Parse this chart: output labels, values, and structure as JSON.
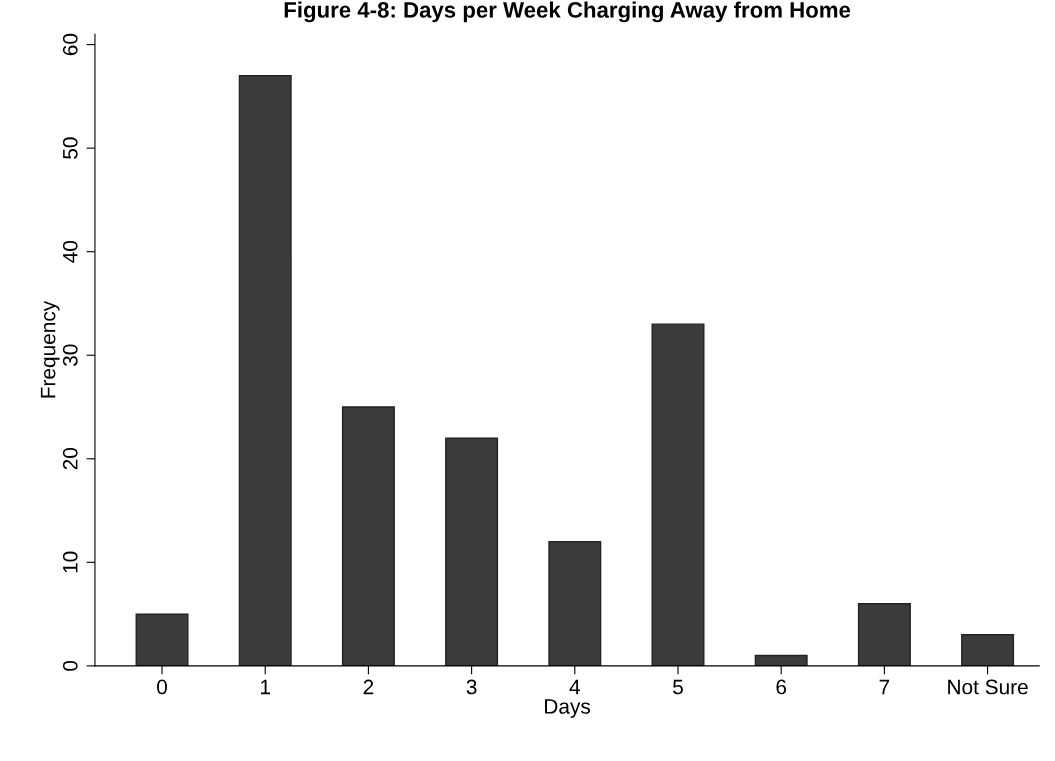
{
  "chart_data": {
    "type": "bar",
    "title": "Figure 4-8: Days per Week Charging Away from Home",
    "xlabel": "Days",
    "ylabel": "Frequency",
    "categories": [
      "0",
      "1",
      "2",
      "3",
      "4",
      "5",
      "6",
      "7",
      "Not Sure"
    ],
    "values": [
      5,
      57,
      25,
      22,
      12,
      33,
      1,
      6,
      3
    ],
    "color": "#3b3b3b",
    "ylim": [
      0,
      61
    ],
    "yticks": [
      0,
      10,
      20,
      30,
      40,
      50,
      60
    ],
    "grid": false
  }
}
